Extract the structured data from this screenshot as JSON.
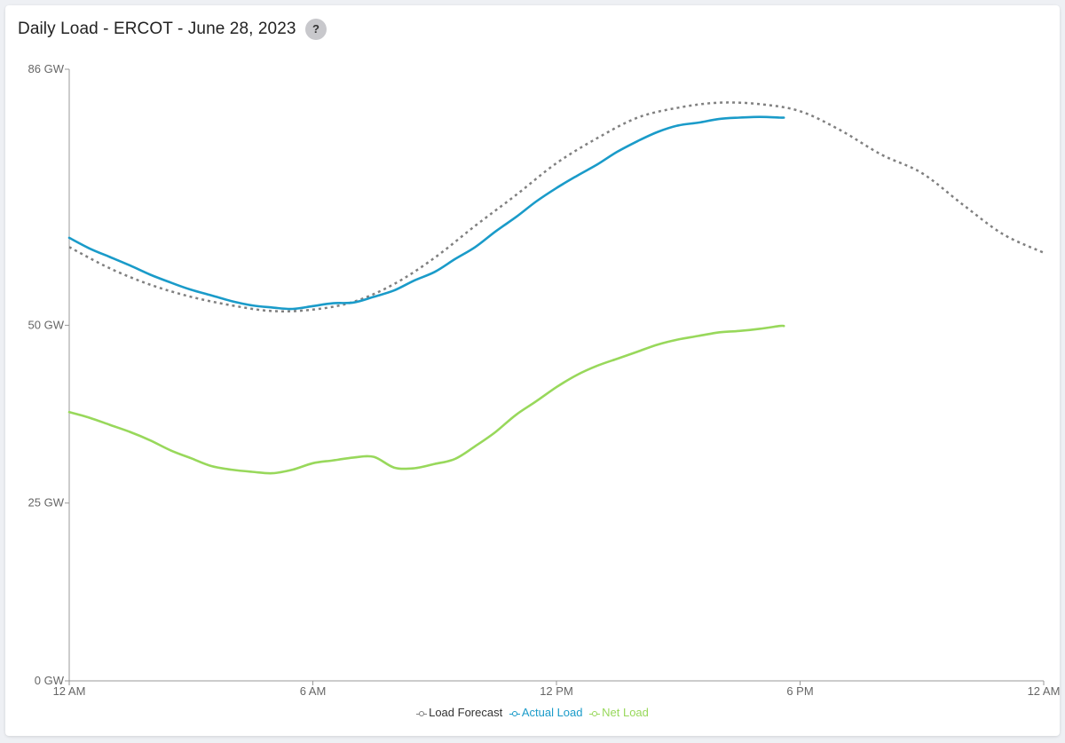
{
  "header": {
    "title": "Daily Load - ERCOT - June 28, 2023",
    "help_label": "?"
  },
  "colors": {
    "forecast": "#808080",
    "actual": "#1a9bc9",
    "net": "#98d85b",
    "axis": "#999999"
  },
  "chart_data": {
    "type": "line",
    "title": "Daily Load - ERCOT - June 28, 2023",
    "xlabel": "",
    "ylabel": "",
    "x_unit": "hours since 12 AM",
    "xlim": [
      0,
      24
    ],
    "ylim": [
      0,
      86
    ],
    "y_ticks": [
      0,
      25,
      50,
      86
    ],
    "y_tick_labels": [
      "0 GW",
      "25 GW",
      "50 GW",
      "86 GW"
    ],
    "x_ticks": [
      0,
      6,
      12,
      18,
      24
    ],
    "x_tick_labels": [
      "12 AM",
      "6 AM",
      "12 PM",
      "6 PM",
      "12 AM"
    ],
    "grid": false,
    "legend_position": "bottom-center",
    "series": [
      {
        "name": "Load Forecast",
        "style": "dotted",
        "x": [
          0,
          1,
          2,
          3,
          4,
          5,
          6,
          7,
          8,
          9,
          10,
          11,
          12,
          13,
          14,
          15,
          16,
          17,
          18,
          19,
          20,
          21,
          22,
          23,
          24
        ],
        "y": [
          61.0,
          58.0,
          55.7,
          54.0,
          52.8,
          52.0,
          52.2,
          53.3,
          55.8,
          59.5,
          64.0,
          68.3,
          72.8,
          76.3,
          79.2,
          80.6,
          81.3,
          81.1,
          80.1,
          77.4,
          74.0,
          71.4,
          67.0,
          62.8,
          60.2
        ]
      },
      {
        "name": "Actual Load",
        "style": "solid",
        "x": [
          0,
          0.5,
          1,
          1.5,
          2,
          2.5,
          3,
          3.5,
          4,
          4.5,
          5,
          5.5,
          6,
          6.5,
          7,
          7.5,
          8,
          8.5,
          9,
          9.5,
          10,
          10.5,
          11,
          11.5,
          12,
          12.5,
          13,
          13.5,
          14,
          14.5,
          15,
          15.5,
          16,
          16.5,
          17,
          17.5,
          17.6
        ],
        "y": [
          62.3,
          60.8,
          59.6,
          58.4,
          57.1,
          56.0,
          55.0,
          54.2,
          53.4,
          52.8,
          52.5,
          52.3,
          52.7,
          53.1,
          53.2,
          54.0,
          54.9,
          56.3,
          57.5,
          59.3,
          61.0,
          63.2,
          65.2,
          67.4,
          69.3,
          71.0,
          72.6,
          74.4,
          75.9,
          77.2,
          78.1,
          78.5,
          79.0,
          79.2,
          79.3,
          79.2,
          79.2
        ]
      },
      {
        "name": "Net Load",
        "style": "solid",
        "x": [
          0,
          0.5,
          1,
          1.5,
          2,
          2.5,
          3,
          3.5,
          4,
          4.5,
          5,
          5.5,
          6,
          6.5,
          7,
          7.5,
          8,
          8.5,
          9,
          9.5,
          10,
          10.5,
          11,
          11.5,
          12,
          12.5,
          13,
          13.5,
          14,
          14.5,
          15,
          15.5,
          16,
          16.5,
          17,
          17.5,
          17.6
        ],
        "y": [
          37.8,
          37.0,
          36.0,
          35.0,
          33.8,
          32.4,
          31.3,
          30.2,
          29.7,
          29.4,
          29.2,
          29.7,
          30.6,
          31.0,
          31.4,
          31.5,
          30.0,
          29.9,
          30.5,
          31.2,
          33.0,
          35.0,
          37.4,
          39.3,
          41.3,
          43.0,
          44.3,
          45.3,
          46.3,
          47.3,
          48.0,
          48.5,
          49.0,
          49.2,
          49.5,
          49.9,
          49.9
        ]
      }
    ]
  },
  "legend": {
    "items": [
      {
        "label": "Load Forecast",
        "color": "#808080"
      },
      {
        "label": "Actual Load",
        "color": "#1a9bc9"
      },
      {
        "label": "Net Load",
        "color": "#98d85b"
      }
    ]
  }
}
